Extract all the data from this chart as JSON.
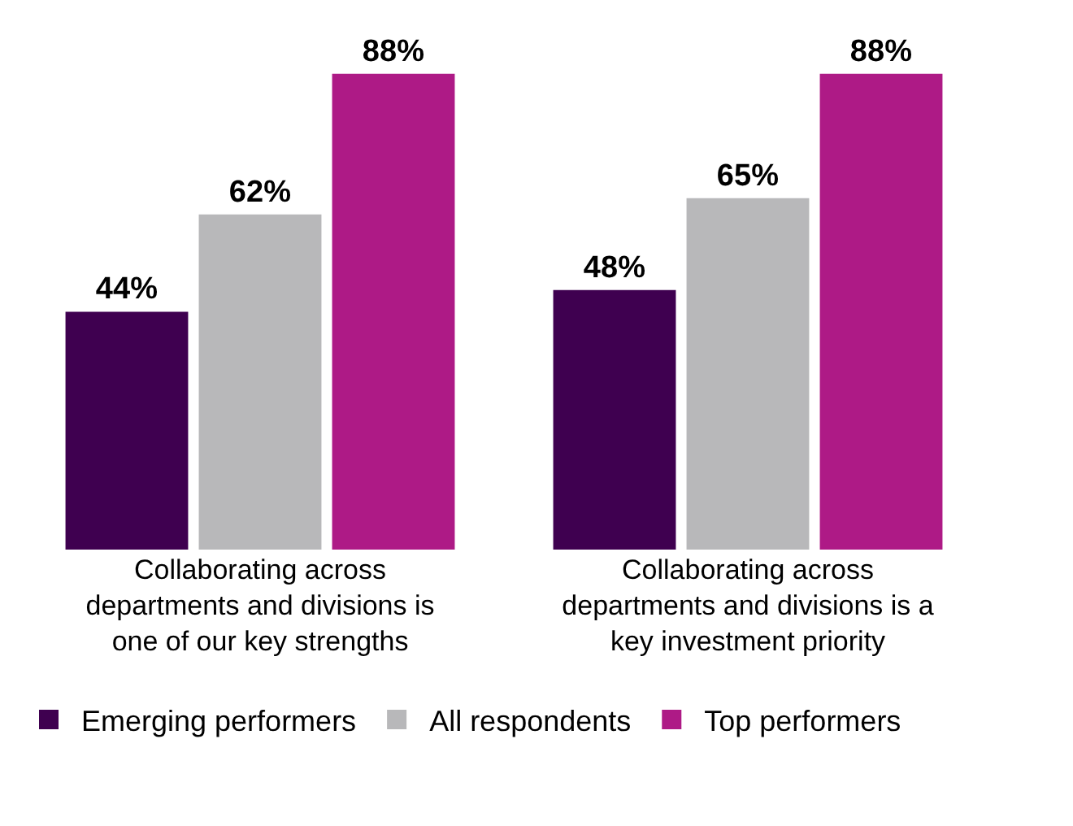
{
  "chart_data": {
    "type": "bar",
    "categories": [
      "Collaborating across departments and divisions is one of our key strengths",
      "Collaborating across departments and divisions is a key investment priority"
    ],
    "series": [
      {
        "name": "Emerging performers",
        "color": "#3f0050",
        "values": [
          44,
          48
        ],
        "value_labels": [
          "44%",
          "48%"
        ]
      },
      {
        "name": "All respondents",
        "color": "#b8b8ba",
        "values": [
          62,
          65
        ],
        "value_labels": [
          "62%",
          "65%"
        ]
      },
      {
        "name": "Top performers",
        "color": "#ae1a86",
        "values": [
          88,
          88
        ],
        "value_labels": [
          "88%",
          "88%"
        ]
      }
    ],
    "legend": "bottom"
  }
}
